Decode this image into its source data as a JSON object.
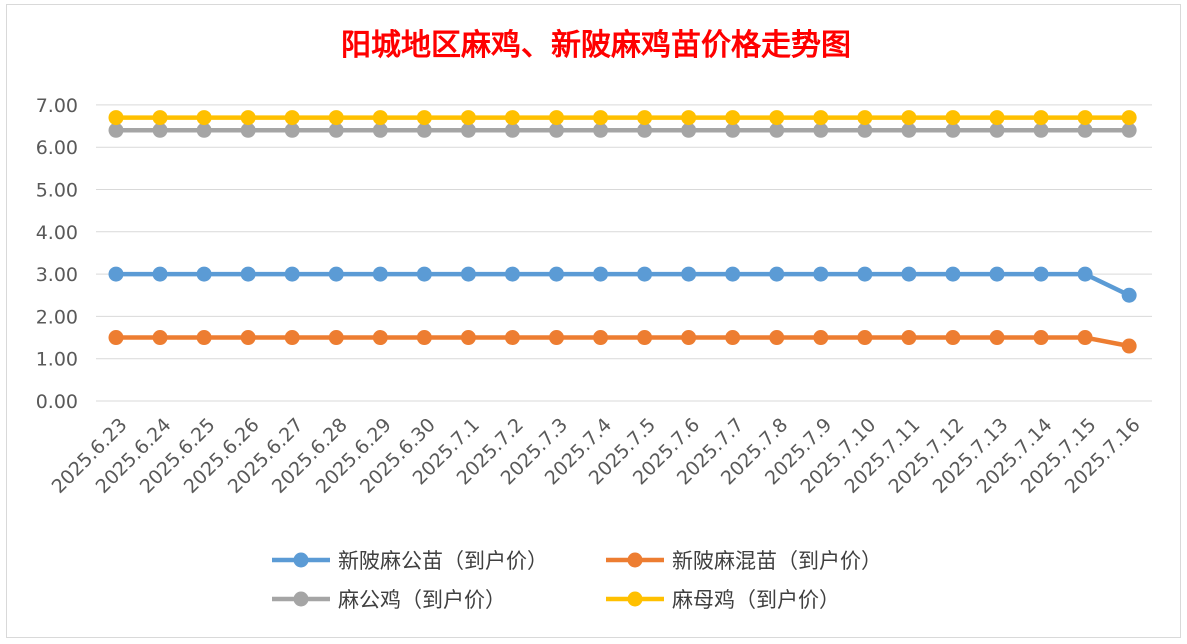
{
  "chart_data": {
    "type": "line",
    "title": "阳城地区麻鸡、新陂麻鸡苗价格走势图",
    "xlabel": "",
    "ylabel": "",
    "ylim": [
      0,
      7
    ],
    "yticks": [
      "0.00",
      "1.00",
      "2.00",
      "3.00",
      "4.00",
      "5.00",
      "6.00",
      "7.00"
    ],
    "grid": "horizontal",
    "legend_position": "bottom",
    "categories": [
      "2025.6.23",
      "2025.6.24",
      "2025.6.25",
      "2025.6.26",
      "2025.6.27",
      "2025.6.28",
      "2025.6.29",
      "2025.6.30",
      "2025.7.1",
      "2025.7.2",
      "2025.7.3",
      "2025.7.4",
      "2025.7.5",
      "2025.7.6",
      "2025.7.7",
      "2025.7.8",
      "2025.7.9",
      "2025.7.10",
      "2025.7.11",
      "2025.7.12",
      "2025.7.13",
      "2025.7.14",
      "2025.7.15",
      "2025.7.16"
    ],
    "series": [
      {
        "name": "新陂麻公苗（到户价）",
        "color": "#5b9bd5",
        "values": [
          3.0,
          3.0,
          3.0,
          3.0,
          3.0,
          3.0,
          3.0,
          3.0,
          3.0,
          3.0,
          3.0,
          3.0,
          3.0,
          3.0,
          3.0,
          3.0,
          3.0,
          3.0,
          3.0,
          3.0,
          3.0,
          3.0,
          3.0,
          2.5
        ]
      },
      {
        "name": "新陂麻混苗（到户价）",
        "color": "#ed7d31",
        "values": [
          1.5,
          1.5,
          1.5,
          1.5,
          1.5,
          1.5,
          1.5,
          1.5,
          1.5,
          1.5,
          1.5,
          1.5,
          1.5,
          1.5,
          1.5,
          1.5,
          1.5,
          1.5,
          1.5,
          1.5,
          1.5,
          1.5,
          1.5,
          1.3
        ]
      },
      {
        "name": "麻公鸡（到户价）",
        "color": "#a5a5a5",
        "values": [
          6.4,
          6.4,
          6.4,
          6.4,
          6.4,
          6.4,
          6.4,
          6.4,
          6.4,
          6.4,
          6.4,
          6.4,
          6.4,
          6.4,
          6.4,
          6.4,
          6.4,
          6.4,
          6.4,
          6.4,
          6.4,
          6.4,
          6.4,
          6.4
        ]
      },
      {
        "name": "麻母鸡（到户价）",
        "color": "#ffc000",
        "values": [
          6.7,
          6.7,
          6.7,
          6.7,
          6.7,
          6.7,
          6.7,
          6.7,
          6.7,
          6.7,
          6.7,
          6.7,
          6.7,
          6.7,
          6.7,
          6.7,
          6.7,
          6.7,
          6.7,
          6.7,
          6.7,
          6.7,
          6.7,
          6.7
        ]
      }
    ]
  }
}
